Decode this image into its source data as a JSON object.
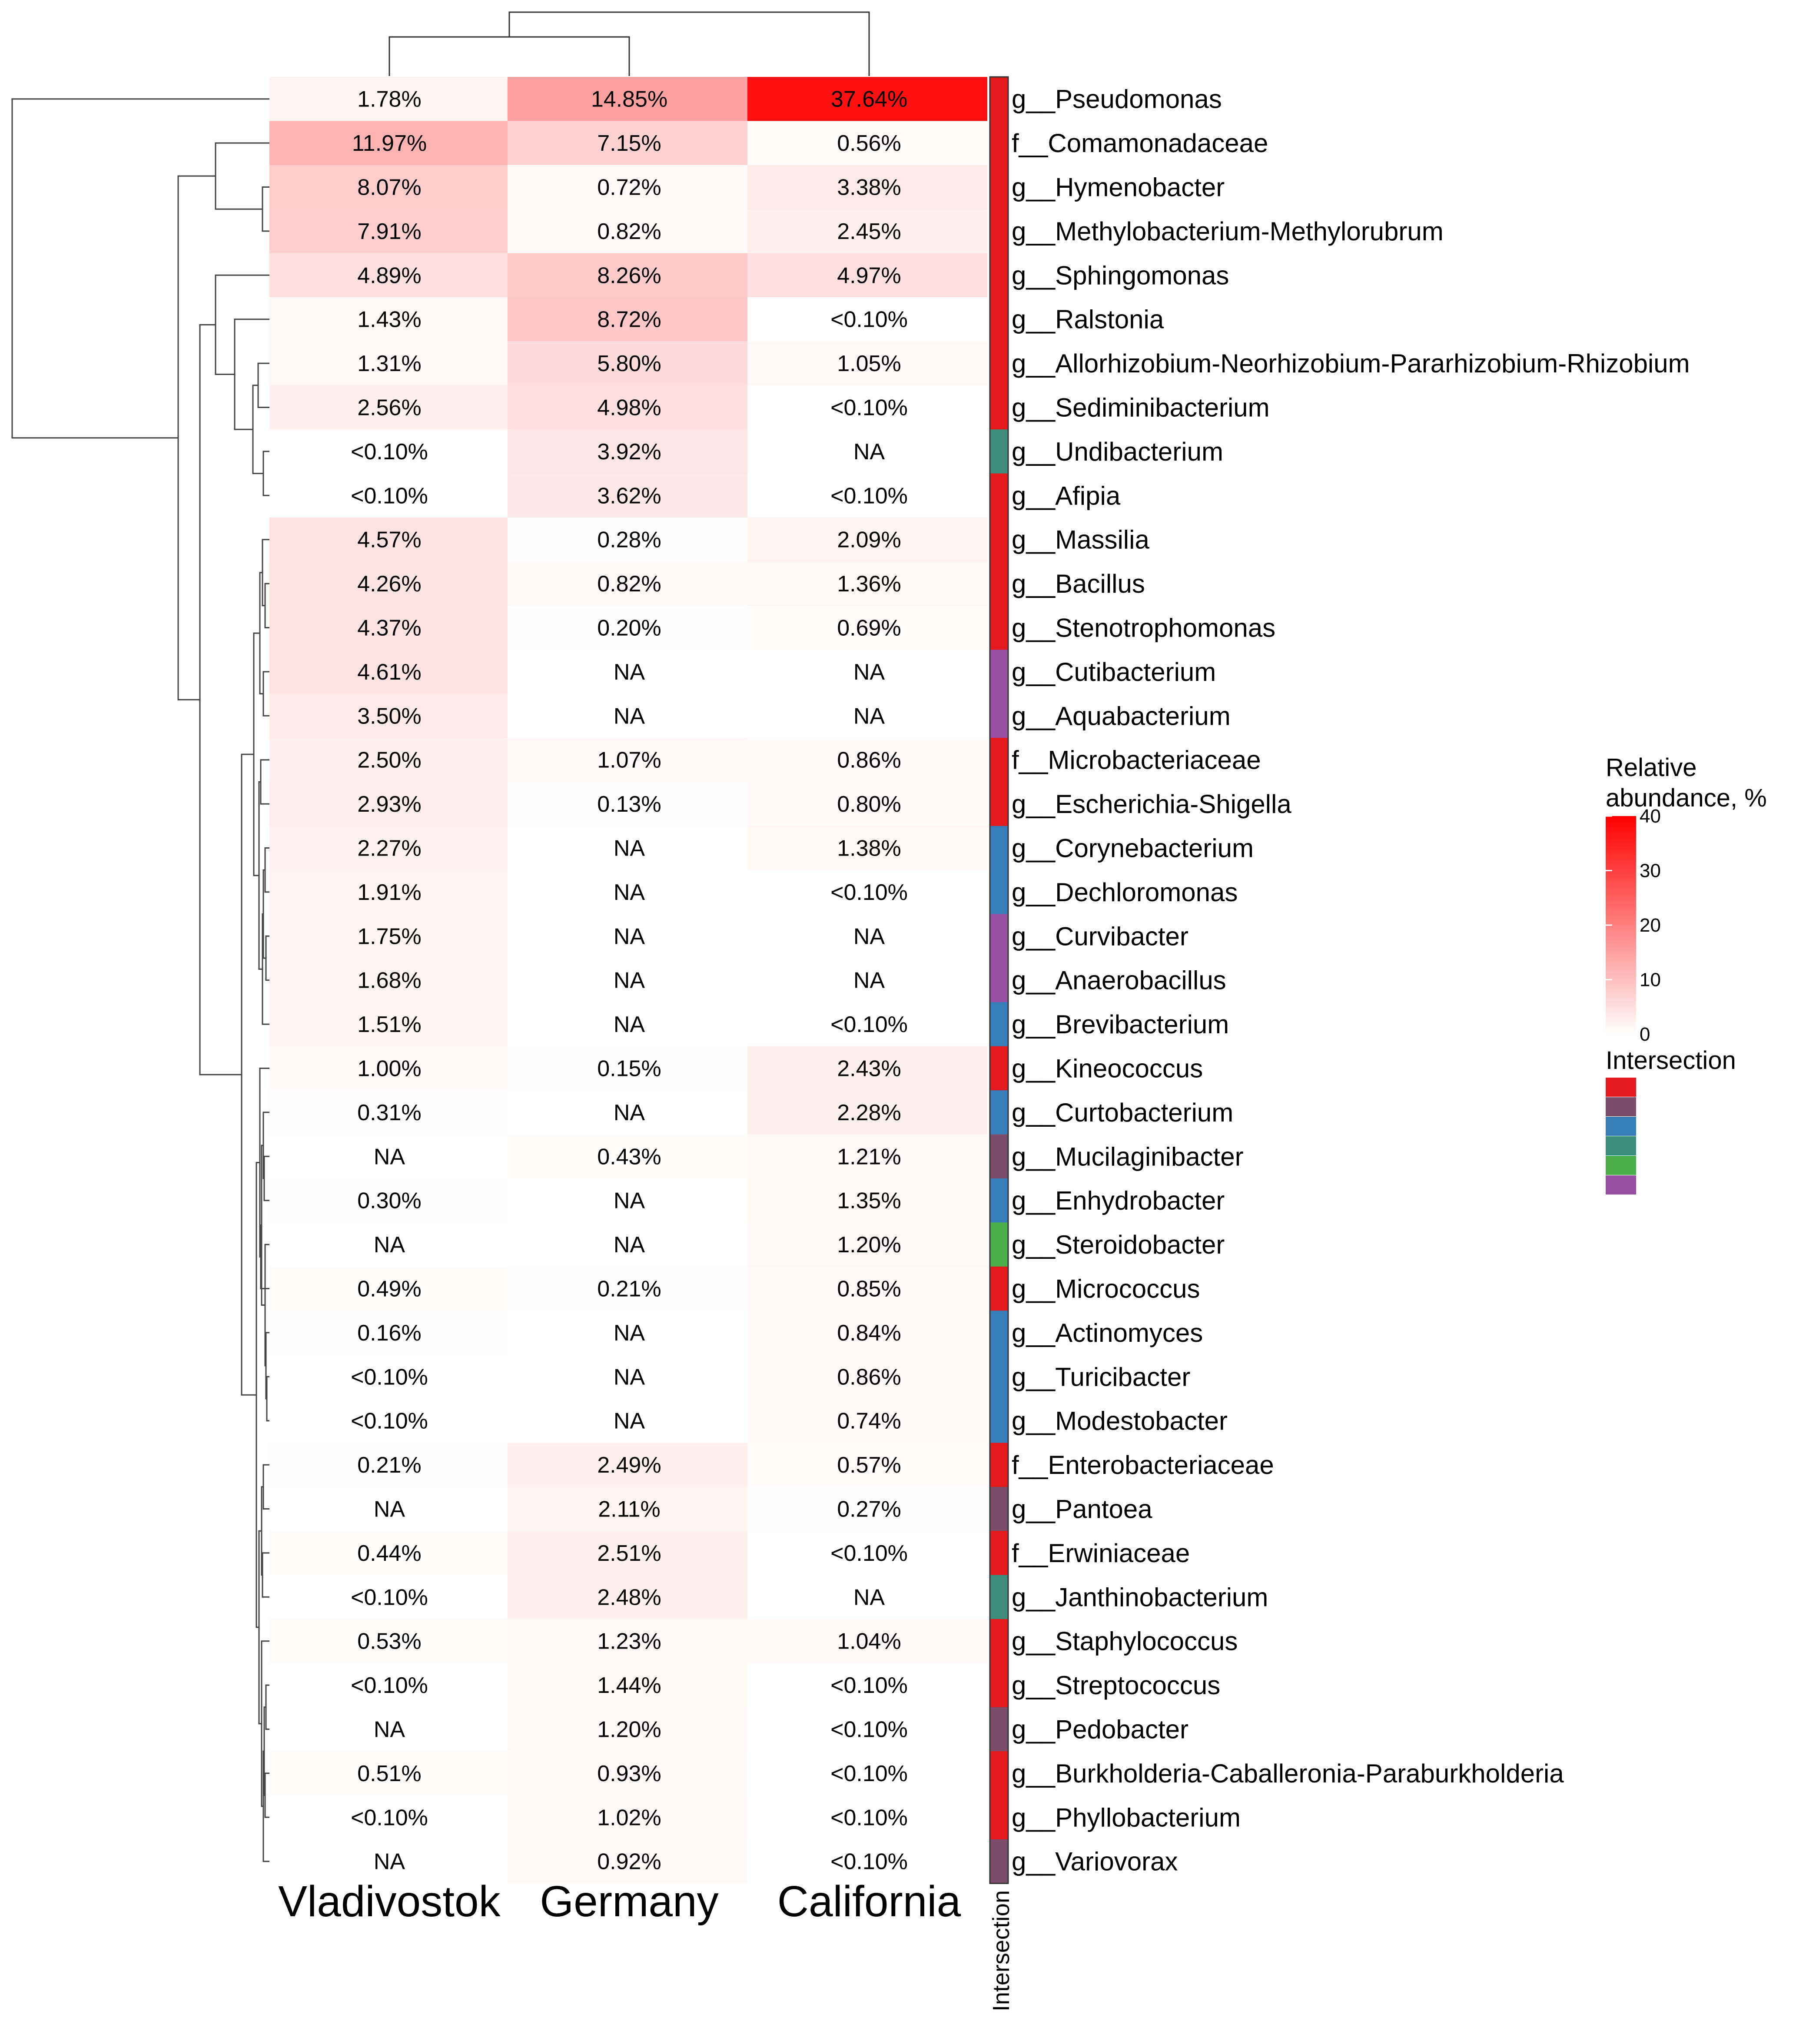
{
  "chart_data": {
    "type": "heatmap",
    "columns": [
      "Vladivostok",
      "Germany",
      "California"
    ],
    "rows": [
      {
        "name": "g__Pseudomonas",
        "values": [
          1.78,
          14.85,
          37.64
        ],
        "labels": [
          "1.78%",
          "14.85%",
          "37.64%"
        ],
        "group": 1
      },
      {
        "name": "f__Comamonadaceae",
        "values": [
          11.97,
          7.15,
          0.56
        ],
        "labels": [
          "11.97%",
          "7.15%",
          "0.56%"
        ],
        "group": 1
      },
      {
        "name": "g__Hymenobacter",
        "values": [
          8.07,
          0.72,
          3.38
        ],
        "labels": [
          "8.07%",
          "0.72%",
          "3.38%"
        ],
        "group": 1
      },
      {
        "name": "g__Methylobacterium-Methylorubrum",
        "values": [
          7.91,
          0.82,
          2.45
        ],
        "labels": [
          "7.91%",
          "0.82%",
          "2.45%"
        ],
        "group": 1
      },
      {
        "name": "g__Sphingomonas",
        "values": [
          4.89,
          8.26,
          4.97
        ],
        "labels": [
          "4.89%",
          "8.26%",
          "4.97%"
        ],
        "group": 1
      },
      {
        "name": "g__Ralstonia",
        "values": [
          1.43,
          8.72,
          0.05
        ],
        "labels": [
          "1.43%",
          "8.72%",
          "<0.10%"
        ],
        "group": 1
      },
      {
        "name": "g__Allorhizobium-Neorhizobium-Pararhizobium-Rhizobium",
        "values": [
          1.31,
          5.8,
          1.05
        ],
        "labels": [
          "1.31%",
          "5.80%",
          "1.05%"
        ],
        "group": 1
      },
      {
        "name": "g__Sediminibacterium",
        "values": [
          2.56,
          4.98,
          0.05
        ],
        "labels": [
          "2.56%",
          "4.98%",
          "<0.10%"
        ],
        "group": 1
      },
      {
        "name": "g__Undibacterium",
        "values": [
          0.05,
          3.92,
          null
        ],
        "labels": [
          "<0.10%",
          "3.92%",
          "NA"
        ],
        "group": 4
      },
      {
        "name": "g__Afipia",
        "values": [
          0.05,
          3.62,
          0.05
        ],
        "labels": [
          "<0.10%",
          "3.62%",
          "<0.10%"
        ],
        "group": 1
      },
      {
        "name": "g__Massilia",
        "values": [
          4.57,
          0.28,
          2.09
        ],
        "labels": [
          "4.57%",
          "0.28%",
          "2.09%"
        ],
        "group": 1
      },
      {
        "name": "g__Bacillus",
        "values": [
          4.26,
          0.82,
          1.36
        ],
        "labels": [
          "4.26%",
          "0.82%",
          "1.36%"
        ],
        "group": 1
      },
      {
        "name": "g__Stenotrophomonas",
        "values": [
          4.37,
          0.2,
          0.69
        ],
        "labels": [
          "4.37%",
          "0.20%",
          "0.69%"
        ],
        "group": 1
      },
      {
        "name": "g__Cutibacterium",
        "values": [
          4.61,
          null,
          null
        ],
        "labels": [
          "4.61%",
          "NA",
          "NA"
        ],
        "group": 6
      },
      {
        "name": "g__Aquabacterium",
        "values": [
          3.5,
          null,
          null
        ],
        "labels": [
          "3.50%",
          "NA",
          "NA"
        ],
        "group": 6
      },
      {
        "name": "f__Microbacteriaceae",
        "values": [
          2.5,
          1.07,
          0.86
        ],
        "labels": [
          "2.50%",
          "1.07%",
          "0.86%"
        ],
        "group": 1
      },
      {
        "name": "g__Escherichia-Shigella",
        "values": [
          2.93,
          0.13,
          0.8
        ],
        "labels": [
          "2.93%",
          "0.13%",
          "0.80%"
        ],
        "group": 1
      },
      {
        "name": "g__Corynebacterium",
        "values": [
          2.27,
          null,
          1.38
        ],
        "labels": [
          "2.27%",
          "NA",
          "1.38%"
        ],
        "group": 3
      },
      {
        "name": "g__Dechloromonas",
        "values": [
          1.91,
          null,
          0.05
        ],
        "labels": [
          "1.91%",
          "NA",
          "<0.10%"
        ],
        "group": 3
      },
      {
        "name": "g__Curvibacter",
        "values": [
          1.75,
          null,
          null
        ],
        "labels": [
          "1.75%",
          "NA",
          "NA"
        ],
        "group": 6
      },
      {
        "name": "g__Anaerobacillus",
        "values": [
          1.68,
          null,
          null
        ],
        "labels": [
          "1.68%",
          "NA",
          "NA"
        ],
        "group": 6
      },
      {
        "name": "g__Brevibacterium",
        "values": [
          1.51,
          null,
          0.05
        ],
        "labels": [
          "1.51%",
          "NA",
          "<0.10%"
        ],
        "group": 3
      },
      {
        "name": "g__Kineococcus",
        "values": [
          1.0,
          0.15,
          2.43
        ],
        "labels": [
          "1.00%",
          "0.15%",
          "2.43%"
        ],
        "group": 1
      },
      {
        "name": "g__Curtobacterium",
        "values": [
          0.31,
          null,
          2.28
        ],
        "labels": [
          "0.31%",
          "NA",
          "2.28%"
        ],
        "group": 3
      },
      {
        "name": "g__Mucilaginibacter",
        "values": [
          null,
          0.43,
          1.21
        ],
        "labels": [
          "NA",
          "0.43%",
          "1.21%"
        ],
        "group": 2
      },
      {
        "name": "g__Enhydrobacter",
        "values": [
          0.3,
          null,
          1.35
        ],
        "labels": [
          "0.30%",
          "NA",
          "1.35%"
        ],
        "group": 3
      },
      {
        "name": "g__Steroidobacter",
        "values": [
          null,
          null,
          1.2
        ],
        "labels": [
          "NA",
          "NA",
          "1.20%"
        ],
        "group": 5
      },
      {
        "name": "g__Micrococcus",
        "values": [
          0.49,
          0.21,
          0.85
        ],
        "labels": [
          "0.49%",
          "0.21%",
          "0.85%"
        ],
        "group": 1
      },
      {
        "name": "g__Actinomyces",
        "values": [
          0.16,
          null,
          0.84
        ],
        "labels": [
          "0.16%",
          "NA",
          "0.84%"
        ],
        "group": 3
      },
      {
        "name": "g__Turicibacter",
        "values": [
          0.05,
          null,
          0.86
        ],
        "labels": [
          "<0.10%",
          "NA",
          "0.86%"
        ],
        "group": 3
      },
      {
        "name": "g__Modestobacter",
        "values": [
          0.05,
          null,
          0.74
        ],
        "labels": [
          "<0.10%",
          "NA",
          "0.74%"
        ],
        "group": 3
      },
      {
        "name": "f__Enterobacteriaceae",
        "values": [
          0.21,
          2.49,
          0.57
        ],
        "labels": [
          "0.21%",
          "2.49%",
          "0.57%"
        ],
        "group": 1
      },
      {
        "name": "g__Pantoea",
        "values": [
          null,
          2.11,
          0.27
        ],
        "labels": [
          "NA",
          "2.11%",
          "0.27%"
        ],
        "group": 2
      },
      {
        "name": "f__Erwiniaceae",
        "values": [
          0.44,
          2.51,
          0.05
        ],
        "labels": [
          "0.44%",
          "2.51%",
          "<0.10%"
        ],
        "group": 1
      },
      {
        "name": "g__Janthinobacterium",
        "values": [
          0.05,
          2.48,
          null
        ],
        "labels": [
          "<0.10%",
          "2.48%",
          "NA"
        ],
        "group": 4
      },
      {
        "name": "g__Staphylococcus",
        "values": [
          0.53,
          1.23,
          1.04
        ],
        "labels": [
          "0.53%",
          "1.23%",
          "1.04%"
        ],
        "group": 1
      },
      {
        "name": "g__Streptococcus",
        "values": [
          0.05,
          1.44,
          0.05
        ],
        "labels": [
          "<0.10%",
          "1.44%",
          "<0.10%"
        ],
        "group": 1
      },
      {
        "name": "g__Pedobacter",
        "values": [
          null,
          1.2,
          0.05
        ],
        "labels": [
          "NA",
          "1.20%",
          "<0.10%"
        ],
        "group": 2
      },
      {
        "name": "g__Burkholderia-Caballeronia-Paraburkholderia",
        "values": [
          0.51,
          0.93,
          0.05
        ],
        "labels": [
          "0.51%",
          "0.93%",
          "<0.10%"
        ],
        "group": 1
      },
      {
        "name": "g__Phyllobacterium",
        "values": [
          0.05,
          1.02,
          0.05
        ],
        "labels": [
          "<0.10%",
          "1.02%",
          "<0.10%"
        ],
        "group": 1
      },
      {
        "name": "g__Variovorax",
        "values": [
          null,
          0.92,
          0.05
        ],
        "labels": [
          "NA",
          "0.92%",
          "<0.10%"
        ],
        "group": 2
      }
    ],
    "color_scale": {
      "min": 0,
      "max": 40,
      "low_color": "#ffffff",
      "high_color": "#ff0000"
    },
    "legend": {
      "title_line1": "Relative",
      "title_line2": "abundance, %",
      "ticks": [
        40,
        30,
        20,
        10,
        0
      ],
      "intersection_title": "Intersection",
      "intersection_colors": [
        "#e41a1c",
        "#7c4d6a",
        "#377eb8",
        "#3d8d7c",
        "#4daf4a",
        "#984ea3"
      ]
    },
    "annotation_label": "Intersection",
    "group_colors": {
      "1": "#e41a1c",
      "2": "#7c4d6a",
      "3": "#377eb8",
      "4": "#3d8d7c",
      "5": "#4daf4a",
      "6": "#984ea3"
    }
  }
}
